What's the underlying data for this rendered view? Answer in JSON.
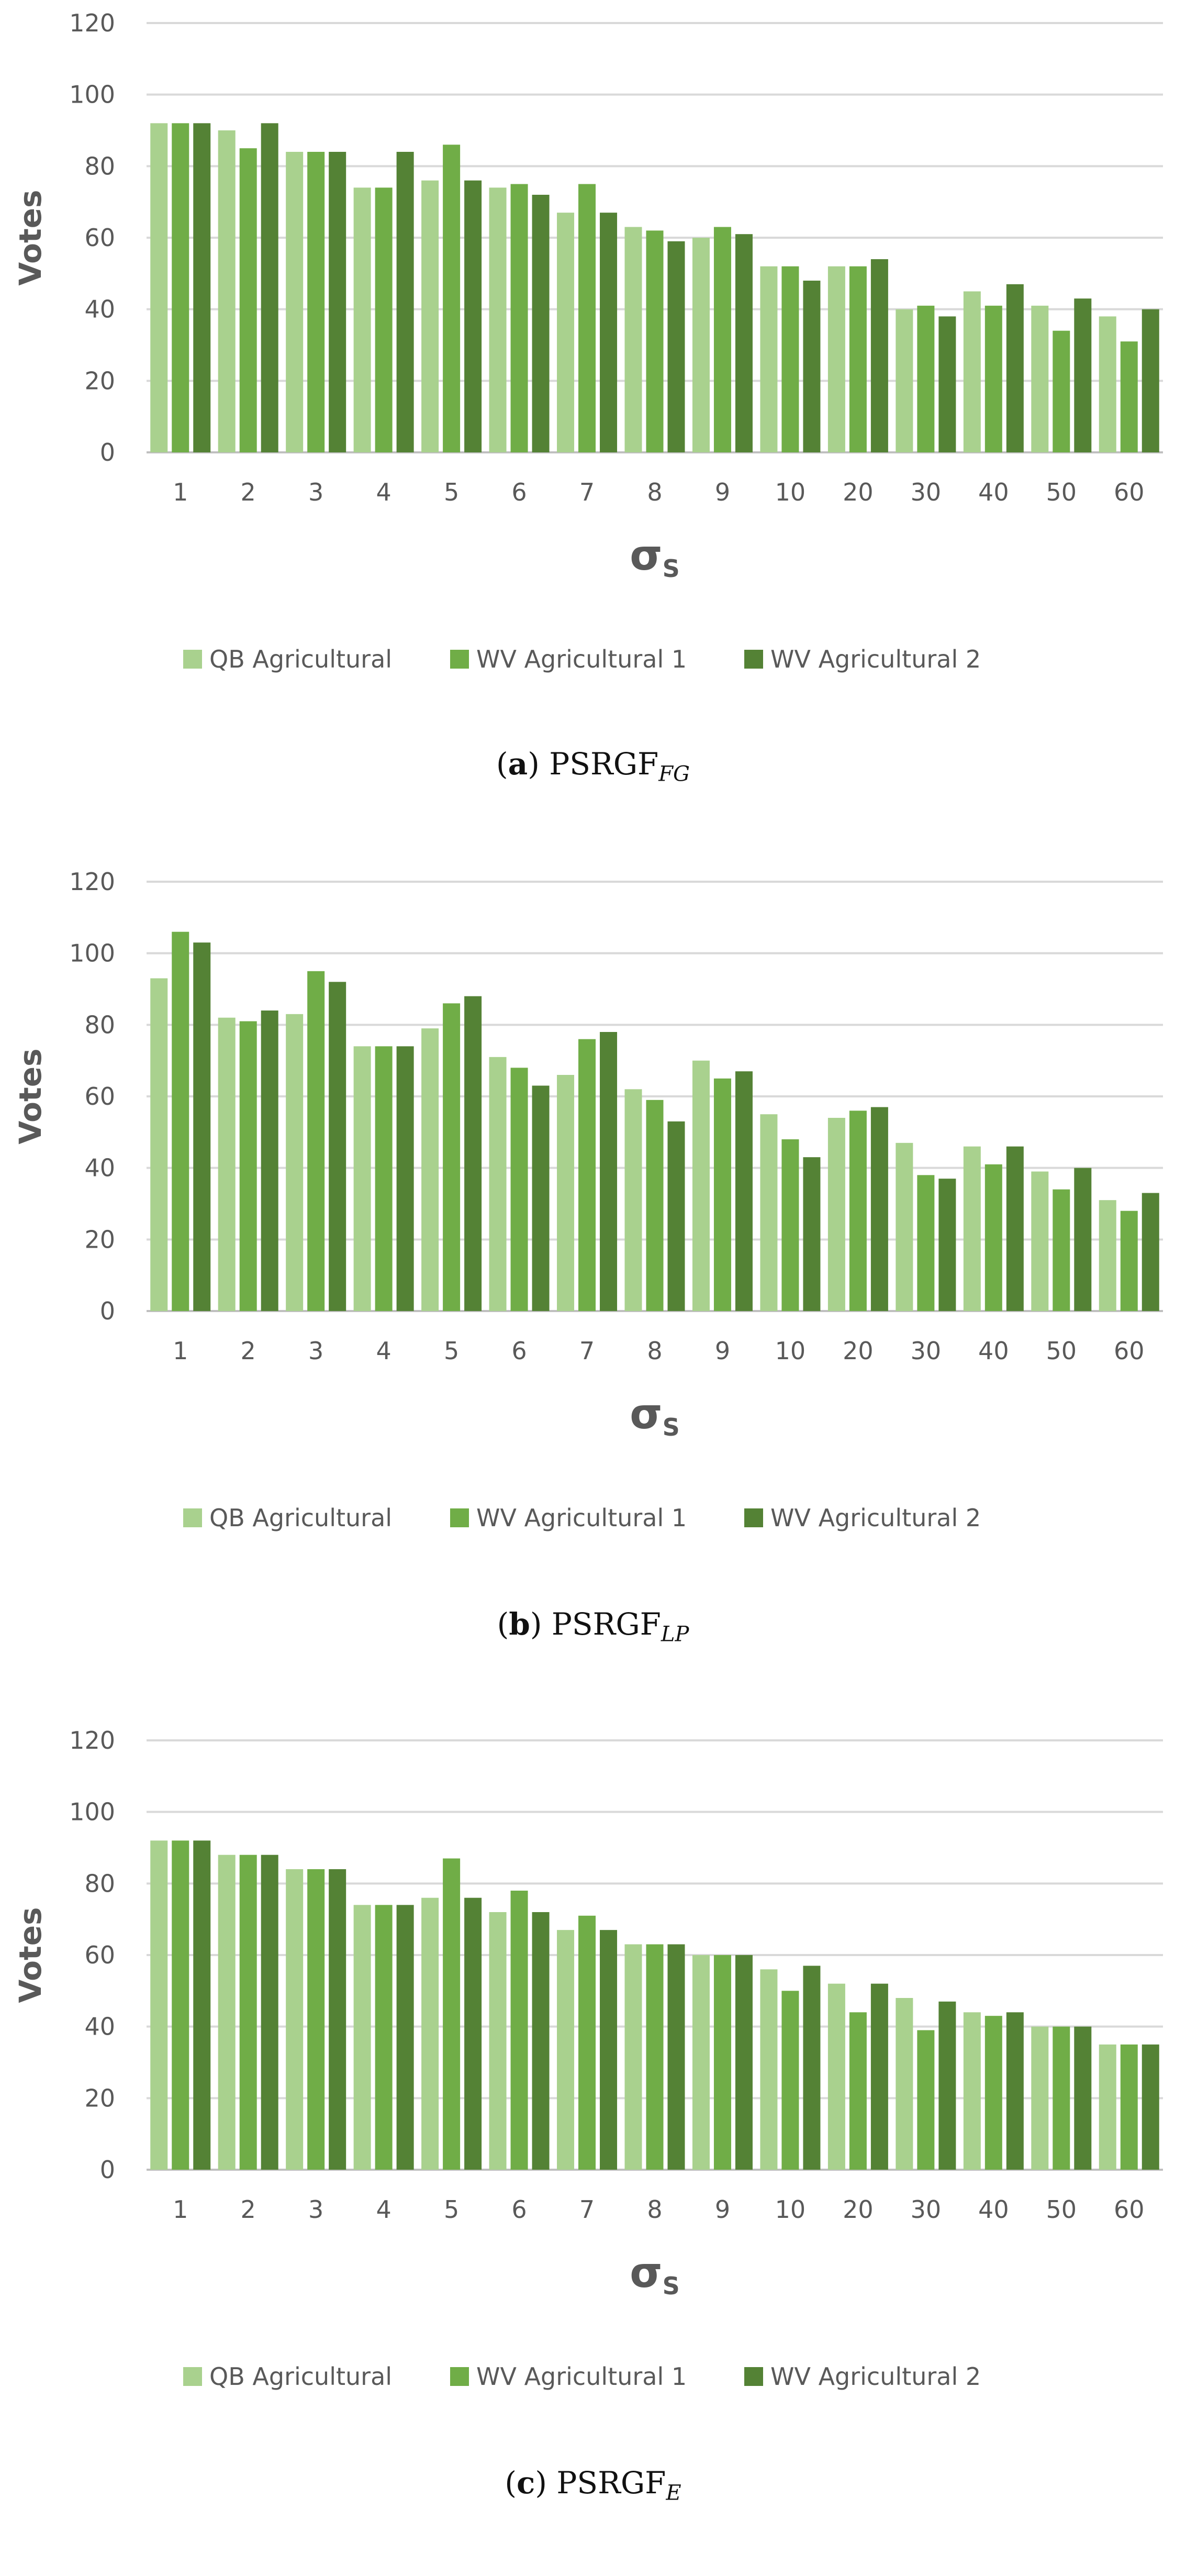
{
  "legend_colors": [
    "#a9d18e",
    "#70ad47",
    "#548235"
  ],
  "chart_data": [
    {
      "type": "bar",
      "ylabel": "Votes",
      "xlabel": "σs",
      "ylim": [
        0,
        120
      ],
      "yticks": [
        "0",
        "20",
        "40",
        "60",
        "80",
        "100",
        "120"
      ],
      "grid": true,
      "legend_position": "bottom",
      "categories": [
        "1",
        "2",
        "3",
        "4",
        "5",
        "6",
        "7",
        "8",
        "9",
        "10",
        "20",
        "30",
        "40",
        "50",
        "60"
      ],
      "series": [
        {
          "name": "QB Agricultural",
          "color": "#a9d18e",
          "values": [
            92,
            90,
            84,
            74,
            76,
            74,
            67,
            63,
            60,
            52,
            52,
            40,
            45,
            41,
            38
          ]
        },
        {
          "name": "WV Agricultural 1",
          "color": "#70ad47",
          "values": [
            92,
            85,
            84,
            74,
            86,
            75,
            75,
            62,
            63,
            52,
            52,
            41,
            41,
            34,
            31
          ]
        },
        {
          "name": "WV Agricultural 2",
          "color": "#548235",
          "values": [
            92,
            92,
            84,
            84,
            76,
            72,
            67,
            59,
            61,
            48,
            54,
            38,
            47,
            43,
            40
          ]
        }
      ],
      "caption": {
        "tag": "a",
        "text": "PSRGF",
        "sub": "FG"
      }
    },
    {
      "type": "bar",
      "ylabel": "Votes",
      "xlabel": "σs",
      "ylim": [
        0,
        120
      ],
      "yticks": [
        "0",
        "20",
        "40",
        "60",
        "80",
        "100",
        "120"
      ],
      "grid": true,
      "legend_position": "bottom",
      "categories": [
        "1",
        "2",
        "3",
        "4",
        "5",
        "6",
        "7",
        "8",
        "9",
        "10",
        "20",
        "30",
        "40",
        "50",
        "60"
      ],
      "series": [
        {
          "name": "QB Agricultural",
          "color": "#a9d18e",
          "values": [
            93,
            82,
            83,
            74,
            79,
            71,
            66,
            62,
            70,
            55,
            54,
            47,
            46,
            39,
            31
          ]
        },
        {
          "name": "WV Agricultural 1",
          "color": "#70ad47",
          "values": [
            106,
            81,
            95,
            74,
            86,
            68,
            76,
            59,
            65,
            48,
            56,
            38,
            41,
            34,
            28
          ]
        },
        {
          "name": "WV Agricultural 2",
          "color": "#548235",
          "values": [
            103,
            84,
            92,
            74,
            88,
            63,
            78,
            53,
            67,
            43,
            57,
            37,
            46,
            40,
            33
          ]
        }
      ],
      "caption": {
        "tag": "b",
        "text": "PSRGF",
        "sub": "LP"
      }
    },
    {
      "type": "bar",
      "ylabel": "Votes",
      "xlabel": "σs",
      "ylim": [
        0,
        120
      ],
      "yticks": [
        "0",
        "20",
        "40",
        "60",
        "80",
        "100",
        "120"
      ],
      "grid": true,
      "legend_position": "bottom",
      "categories": [
        "1",
        "2",
        "3",
        "4",
        "5",
        "6",
        "7",
        "8",
        "9",
        "10",
        "20",
        "30",
        "40",
        "50",
        "60"
      ],
      "series": [
        {
          "name": "QB Agricultural",
          "color": "#a9d18e",
          "values": [
            92,
            88,
            84,
            74,
            76,
            72,
            67,
            63,
            60,
            56,
            52,
            48,
            44,
            40,
            35
          ]
        },
        {
          "name": "WV Agricultural 1",
          "color": "#70ad47",
          "values": [
            92,
            88,
            84,
            74,
            87,
            78,
            71,
            63,
            60,
            50,
            44,
            39,
            43,
            40,
            35
          ]
        },
        {
          "name": "WV Agricultural 2",
          "color": "#548235",
          "values": [
            92,
            88,
            84,
            74,
            76,
            72,
            67,
            63,
            60,
            57,
            52,
            47,
            44,
            40,
            35
          ]
        }
      ],
      "caption": {
        "tag": "c",
        "text": "PSRGF",
        "sub": "E"
      }
    }
  ]
}
